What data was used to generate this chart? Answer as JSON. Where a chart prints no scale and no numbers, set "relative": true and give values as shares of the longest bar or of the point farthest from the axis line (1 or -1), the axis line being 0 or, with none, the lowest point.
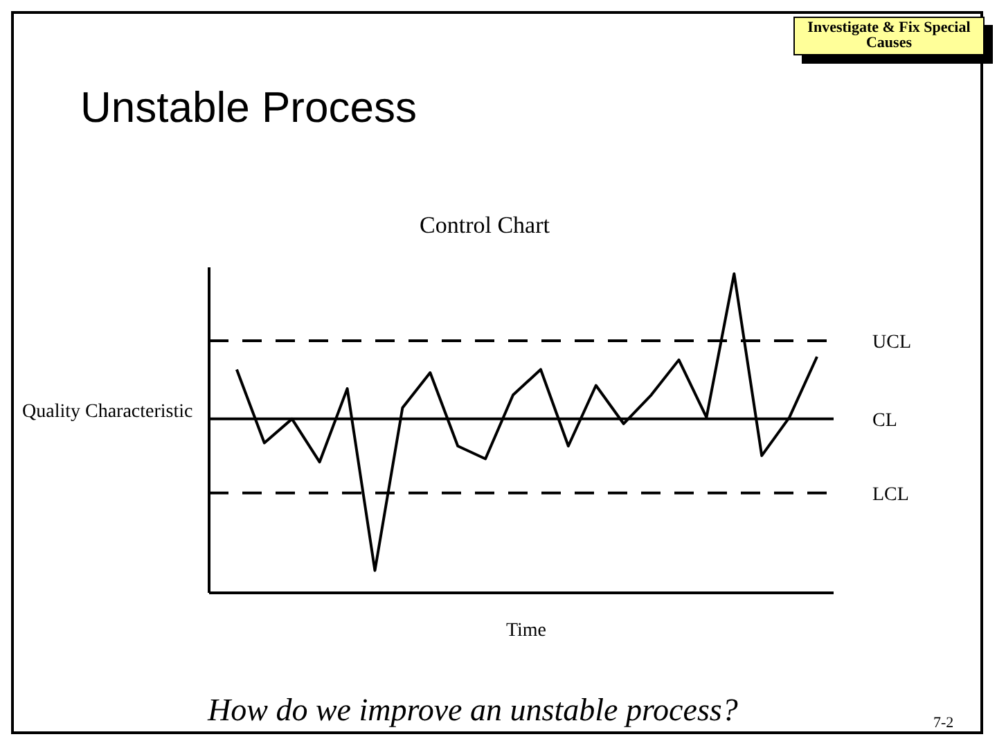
{
  "chart_data": {
    "type": "line",
    "title": "Unstable Process",
    "subtitle": "Control Chart",
    "xlabel": "Time",
    "ylabel": "Quality Characteristic",
    "relative": true,
    "categories": [
      null,
      null,
      null,
      null,
      null,
      null,
      null,
      null,
      null,
      null,
      null,
      null,
      null,
      null,
      null,
      null,
      null,
      null,
      null,
      null,
      null,
      null
    ],
    "series": [
      {
        "color": "#000000",
        "values": [
          0.7,
          0.47,
          0.545,
          0.41,
          0.64,
          0.07,
          0.58,
          0.69,
          0.46,
          0.42,
          0.62,
          0.7,
          0.46,
          0.65,
          0.53,
          0.62,
          0.73,
          0.55,
          1.0,
          0.43,
          0.55,
          0.74
        ]
      }
    ],
    "ref_lines": [
      {
        "axis": "y",
        "value": 0.79,
        "label": "UCL",
        "line_style": "dashed",
        "color": "#000000"
      },
      {
        "axis": "y",
        "value": 0.545,
        "label": "CL",
        "line_style": "solid",
        "color": "#000000"
      },
      {
        "axis": "y",
        "value": 0.313,
        "label": "LCL",
        "line_style": "dashed",
        "color": "#000000"
      }
    ],
    "annotations": [
      "Investigate & Fix Special Causes",
      "How do we improve an unstable process?",
      "7-2"
    ],
    "grid": false
  }
}
